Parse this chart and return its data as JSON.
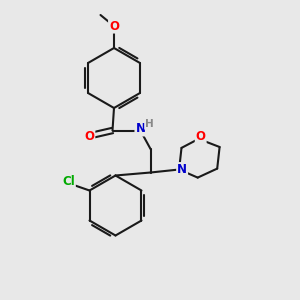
{
  "background_color": "#e8e8e8",
  "bond_color": "#1a1a1a",
  "bond_width": 1.5,
  "atom_colors": {
    "O": "#ff0000",
    "N": "#0000cc",
    "Cl": "#00aa00",
    "H": "#888888",
    "C": "#1a1a1a"
  },
  "font_size_atoms": 8.5,
  "fig_width": 3.0,
  "fig_height": 3.0,
  "dpi": 100,
  "xlim": [
    0,
    10
  ],
  "ylim": [
    0,
    10
  ]
}
